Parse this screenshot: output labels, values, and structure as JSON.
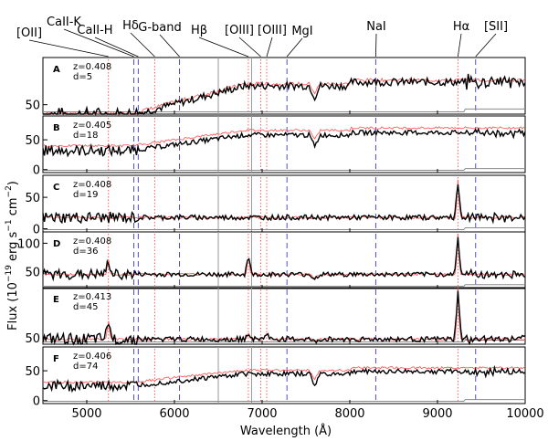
{
  "chart_data": {
    "type": "line",
    "xlabel": "Wavelength (Å)",
    "ylabel": "Flux (10^-19 erg s^-1 cm^-2)",
    "ylabel_parts": {
      "pre": "Flux (10",
      "exp1": "−19",
      "mid": " erg s",
      "exp2": "−1",
      "mid2": " cm",
      "exp3": "−2",
      "post": ")"
    },
    "xlim": [
      4500,
      10000
    ],
    "x_ticks": [
      5000,
      6000,
      7000,
      8000,
      9000,
      10000
    ],
    "x_tick_labels": [
      "5000",
      "6000",
      "7000",
      "8000",
      "9000",
      "10000"
    ],
    "grid": false,
    "colors": {
      "spectrum": "#000000",
      "template": "#ff4d4d",
      "sky": "#8a8a8a",
      "line_marker": "#3a3ad6",
      "em_marker": "#ff4d4d",
      "gray_line": "#9a9a9a"
    },
    "spectral_lines": [
      {
        "name": "[OII]",
        "wavelength": 5247
      },
      {
        "name": "CaII-K",
        "wavelength": 5537
      },
      {
        "name": "CaII-H",
        "wavelength": 5587
      },
      {
        "name": "Hδ",
        "wavelength": 5775
      },
      {
        "name": "G-band",
        "wavelength": 6058
      },
      {
        "name": "Hβ",
        "wavelength": 6843
      },
      {
        "name": "[OIII]",
        "wavelength": 6985
      },
      {
        "name": "[OIII]",
        "wavelength": 7052
      },
      {
        "name": "MgI",
        "wavelength": 7283
      },
      {
        "name": "NaI",
        "wavelength": 8296
      },
      {
        "name": "Hα",
        "wavelength": 9233
      },
      {
        "name": "[SII]",
        "wavelength": 9435
      }
    ],
    "panels": [
      {
        "letter": "A",
        "z": "z=0.408",
        "d": "d=5",
        "ylim": [
          40,
          100
        ],
        "ytick_labels": [
          "50"
        ],
        "yticks": [
          50
        ],
        "base": 70,
        "template_offset": 2,
        "emission": [],
        "abs_dip": 12
      },
      {
        "letter": "B",
        "z": "z=0.405",
        "d": "d=18",
        "ylim": [
          -5,
          90
        ],
        "ytick_labels": [
          "0",
          "50"
        ],
        "yticks": [
          0,
          50
        ],
        "base": 58,
        "template_offset": 8,
        "emission": [],
        "abs_dip": 20
      },
      {
        "letter": "C",
        "z": "z=0.408",
        "d": "d=19",
        "ylim": [
          -5,
          85
        ],
        "ytick_labels": [
          "0",
          "50"
        ],
        "yticks": [
          0,
          50
        ],
        "base": 18,
        "template_offset": 0,
        "emission": [
          {
            "w": 9233,
            "h": 55
          }
        ],
        "abs_dip": 0
      },
      {
        "letter": "D",
        "z": "z=0.408",
        "d": "d=36",
        "ylim": [
          20,
          120
        ],
        "ytick_labels": [
          "50",
          "100"
        ],
        "yticks": [
          50,
          100
        ],
        "base": 45,
        "template_offset": 0,
        "emission": [
          {
            "w": 5247,
            "h": 25
          },
          {
            "w": 6843,
            "h": 35
          },
          {
            "w": 9233,
            "h": 65
          }
        ],
        "abs_dip": 8
      },
      {
        "letter": "E",
        "z": "z=0.413",
        "d": "d=45",
        "ylim": [
          40,
          130
        ],
        "ytick_labels": [
          "50"
        ],
        "yticks": [
          50
        ],
        "base": 48,
        "template_offset": 0,
        "emission": [
          {
            "w": 5247,
            "h": 30
          },
          {
            "w": 6843,
            "h": 12
          },
          {
            "w": 7052,
            "h": 10
          },
          {
            "w": 9233,
            "h": 75
          }
        ],
        "abs_dip": 5
      },
      {
        "letter": "F",
        "z": "z=0.406",
        "d": "d=74",
        "ylim": [
          -5,
          90
        ],
        "ytick_labels": [
          "0",
          "50"
        ],
        "yticks": [
          0,
          50
        ],
        "base": 45,
        "template_offset": 6,
        "emission": [],
        "abs_dip": 20
      }
    ]
  }
}
